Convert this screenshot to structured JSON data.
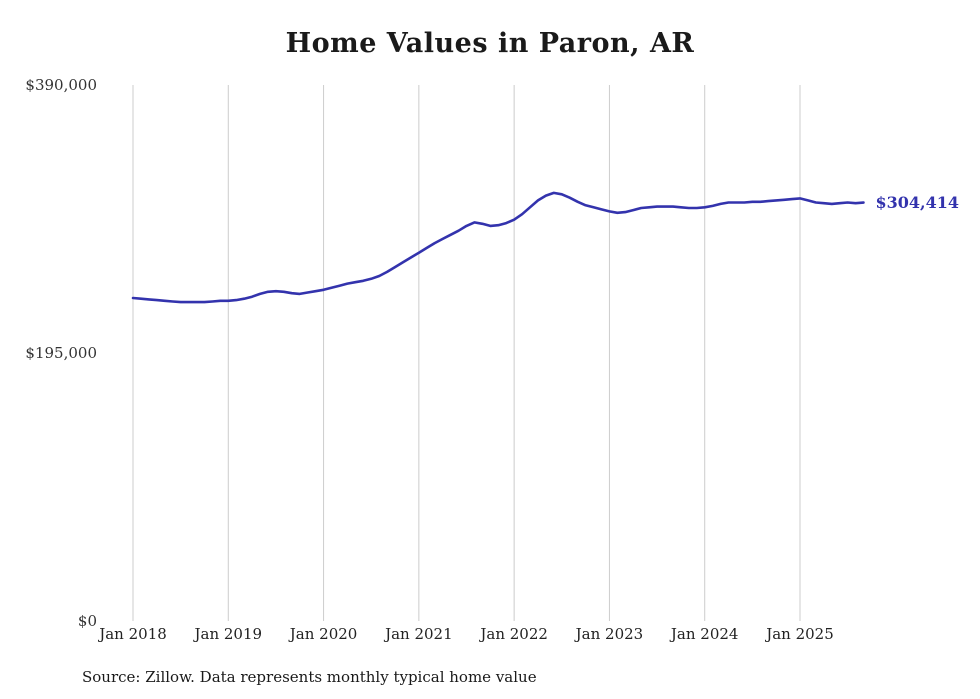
{
  "chart_data": {
    "type": "line",
    "title": "Home Values in Paron, AR",
    "series_name": "Monthly typical home value",
    "x": [
      "2018-01",
      "2018-02",
      "2018-03",
      "2018-04",
      "2018-05",
      "2018-06",
      "2018-07",
      "2018-08",
      "2018-09",
      "2018-10",
      "2018-11",
      "2018-12",
      "2019-01",
      "2019-02",
      "2019-03",
      "2019-04",
      "2019-05",
      "2019-06",
      "2019-07",
      "2019-08",
      "2019-09",
      "2019-10",
      "2019-11",
      "2019-12",
      "2020-01",
      "2020-02",
      "2020-03",
      "2020-04",
      "2020-05",
      "2020-06",
      "2020-07",
      "2020-08",
      "2020-09",
      "2020-10",
      "2020-11",
      "2020-12",
      "2021-01",
      "2021-02",
      "2021-03",
      "2021-04",
      "2021-05",
      "2021-06",
      "2021-07",
      "2021-08",
      "2021-09",
      "2021-10",
      "2021-11",
      "2021-12",
      "2022-01",
      "2022-02",
      "2022-03",
      "2022-04",
      "2022-05",
      "2022-06",
      "2022-07",
      "2022-08",
      "2022-09",
      "2022-10",
      "2022-11",
      "2022-12",
      "2023-01",
      "2023-02",
      "2023-03",
      "2023-04",
      "2023-05",
      "2023-06",
      "2023-07",
      "2023-08",
      "2023-09",
      "2023-10",
      "2023-11",
      "2023-12",
      "2024-01",
      "2024-02",
      "2024-03",
      "2024-04",
      "2024-05",
      "2024-06",
      "2024-07",
      "2024-08",
      "2024-09",
      "2024-10",
      "2024-11",
      "2024-12",
      "2025-01",
      "2025-02",
      "2025-03",
      "2025-04",
      "2025-05",
      "2025-06",
      "2025-07",
      "2025-08",
      "2025-09"
    ],
    "values": [
      235000,
      234500,
      234000,
      233500,
      233000,
      232500,
      232000,
      232000,
      232000,
      232000,
      232500,
      233000,
      233000,
      233500,
      234500,
      236000,
      238000,
      239500,
      240000,
      239500,
      238500,
      238000,
      239000,
      240000,
      241000,
      242500,
      244000,
      245500,
      246500,
      247500,
      249000,
      251000,
      254000,
      257500,
      261000,
      264500,
      268000,
      271500,
      275000,
      278000,
      281000,
      284000,
      287500,
      290000,
      289000,
      287500,
      288000,
      289500,
      292000,
      296000,
      301000,
      306000,
      309500,
      311500,
      310500,
      308000,
      305000,
      302500,
      301000,
      299500,
      298000,
      297000,
      297500,
      299000,
      300500,
      301000,
      301500,
      301500,
      301500,
      301000,
      300500,
      300500,
      301000,
      302000,
      303500,
      304500,
      304500,
      304500,
      305000,
      305000,
      305500,
      306000,
      306500,
      307000,
      307500,
      306000,
      304500,
      304000,
      303500,
      304000,
      304500,
      304000,
      304414
    ],
    "ylim": [
      0,
      390000
    ],
    "yticks": [
      {
        "value": 390000,
        "label": "$390,000"
      },
      {
        "value": 195000,
        "label": "$195,000"
      },
      {
        "value": 0,
        "label": "$0"
      }
    ],
    "xticks": [
      "Jan 2018",
      "Jan 2019",
      "Jan 2020",
      "Jan 2021",
      "Jan 2022",
      "Jan 2023",
      "Jan 2024",
      "Jan 2025"
    ],
    "end_label": "$304,414",
    "line_color": "#3333ad",
    "grid_color": "#cccccc",
    "grid": "vertical-only",
    "legend": "none",
    "source": "Source: Zillow. Data represents monthly typical home value"
  }
}
